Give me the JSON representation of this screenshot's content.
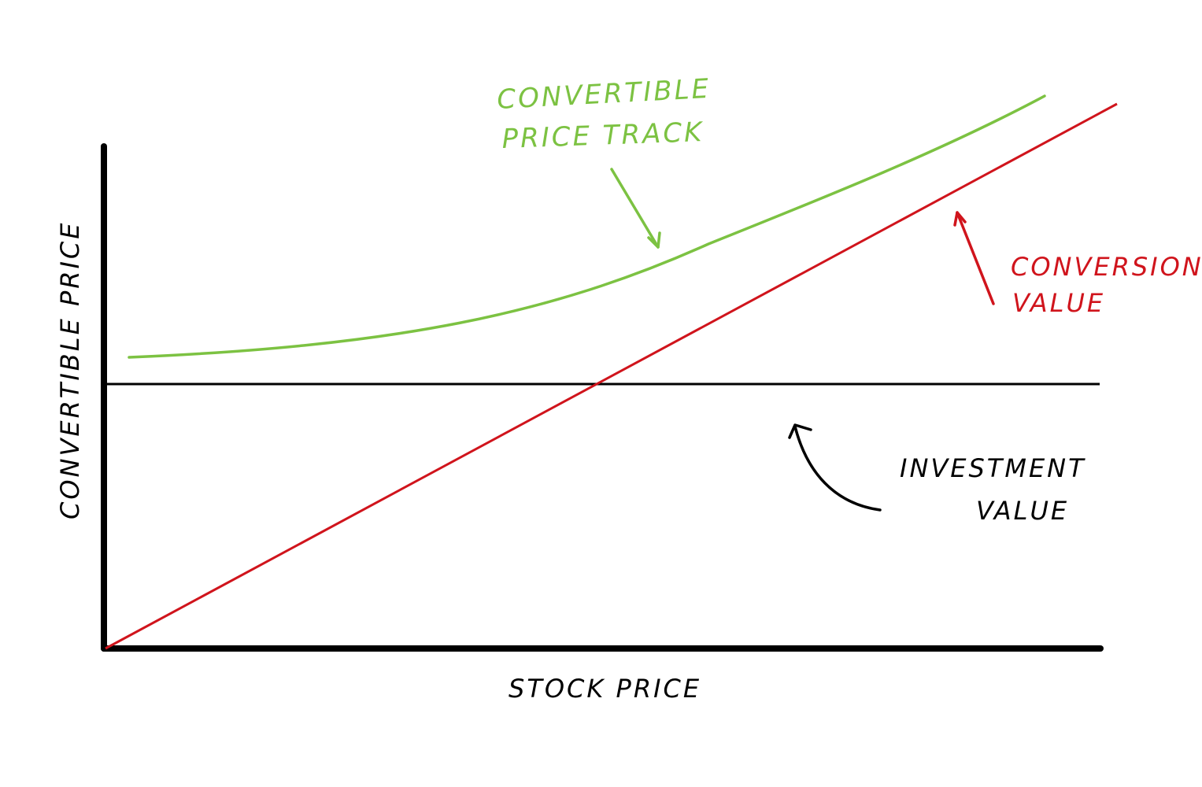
{
  "axes": {
    "x_label": "STOCK PRICE",
    "y_label": "CONVERTIBLE PRICE"
  },
  "labels": {
    "convertible_track": [
      "CONVERTIBLE",
      "PRICE TRACK"
    ],
    "conversion_value": [
      "CONVERSION",
      "VALUE"
    ],
    "investment_value": [
      "INVESTMENT",
      "VALUE"
    ]
  },
  "colors": {
    "axis": "#000000",
    "convertible_track": "#7cc242",
    "conversion_value": "#d0141c",
    "investment_value": "#000000"
  }
}
